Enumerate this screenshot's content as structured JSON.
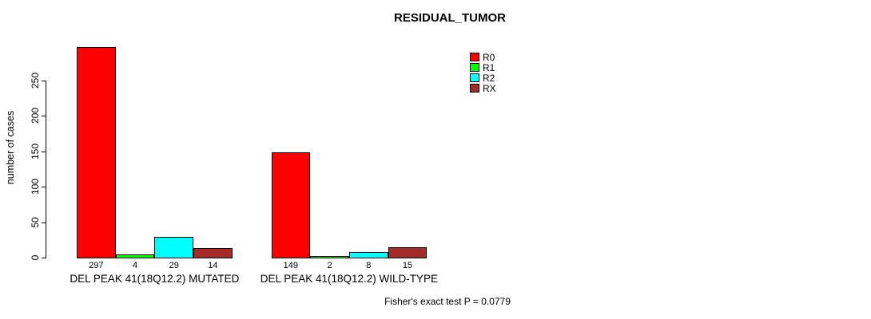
{
  "title": "RESIDUAL_TUMOR",
  "footnote": "Fisher's exact test P = 0.0779",
  "chart_data": {
    "type": "bar",
    "title": "RESIDUAL_TUMOR",
    "xlabel": "",
    "ylabel": "number of cases",
    "ylim": [
      0,
      310
    ],
    "yticks": [
      0,
      50,
      100,
      150,
      200,
      250
    ],
    "grid": false,
    "legend_position": "top-right",
    "legend": [
      {
        "name": "R0",
        "color": "#ff0000"
      },
      {
        "name": "R1",
        "color": "#00ff00"
      },
      {
        "name": "R2",
        "color": "#00ffff"
      },
      {
        "name": "RX",
        "color": "#a52a2a"
      }
    ],
    "categories": [
      "DEL PEAK 41(18Q12.2) MUTATED",
      "DEL PEAK 41(18Q12.2) WILD-TYPE"
    ],
    "series": [
      {
        "name": "R0",
        "values": [
          297,
          149
        ]
      },
      {
        "name": "R1",
        "values": [
          4,
          2
        ]
      },
      {
        "name": "R2",
        "values": [
          29,
          8
        ]
      },
      {
        "name": "RX",
        "values": [
          14,
          15
        ]
      }
    ],
    "bar_value_labels": [
      [
        297,
        4,
        29,
        14
      ],
      [
        149,
        2,
        8,
        15
      ]
    ],
    "annotation": "Fisher's exact test P = 0.0779",
    "bar_border_color": "#000000",
    "axis_color": "#000000",
    "background_color": "#ffffff"
  }
}
